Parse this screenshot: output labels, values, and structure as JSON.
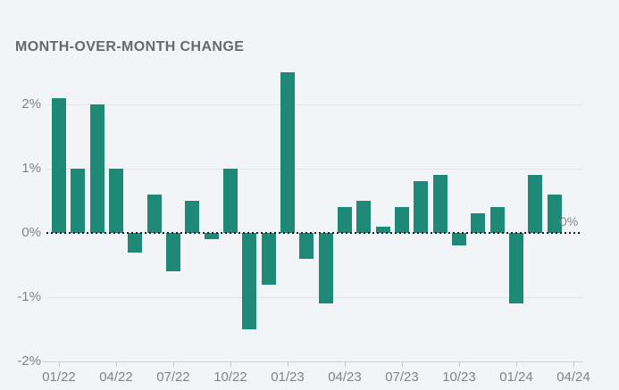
{
  "header": {
    "title": "MONTH-OVER-MONTH CHANGE"
  },
  "colors": {
    "background": "#f2f5f7",
    "bar": "#1e8977",
    "gridline": "#e1e3e4",
    "zero_line": "#1d1d1d",
    "label_text": "#7f8488",
    "title_text": "#67696b"
  },
  "chart_data": {
    "type": "bar",
    "title": "MONTH-OVER-MONTH CHANGE",
    "xlabel": "",
    "ylabel": "",
    "unit": "%",
    "grid": true,
    "legend": false,
    "zero_line_style": "dotted",
    "zero_label_right": "0%",
    "ylim": [
      -2,
      2.6
    ],
    "bar_color": "#1e8977",
    "categories": [
      "01/22",
      "02/22",
      "03/22",
      "04/22",
      "05/22",
      "06/22",
      "07/22",
      "08/22",
      "09/22",
      "10/22",
      "11/22",
      "12/22",
      "01/23",
      "02/23",
      "03/23",
      "04/23",
      "05/23",
      "06/23",
      "07/23",
      "08/23",
      "09/23",
      "10/23",
      "11/23",
      "12/23",
      "01/24",
      "02/24",
      "03/24"
    ],
    "values": [
      2.1,
      1.0,
      2.0,
      1.0,
      -0.3,
      0.6,
      -0.6,
      0.5,
      -0.1,
      1.0,
      -1.5,
      -0.8,
      2.5,
      -0.4,
      -1.1,
      0.4,
      0.5,
      0.1,
      0.4,
      0.8,
      0.9,
      -0.2,
      0.3,
      0.4,
      -1.1,
      0.9,
      0.6
    ],
    "y_ticks": [
      {
        "value": 2,
        "label": "2%"
      },
      {
        "value": 1,
        "label": "1%"
      },
      {
        "value": 0,
        "label": "0%"
      },
      {
        "value": -1,
        "label": "-1%"
      },
      {
        "value": -2,
        "label": "-2%"
      }
    ],
    "x_ticks": [
      "01/22",
      "04/22",
      "07/22",
      "10/22",
      "01/23",
      "04/23",
      "07/23",
      "10/23",
      "01/24",
      "04/24"
    ]
  }
}
